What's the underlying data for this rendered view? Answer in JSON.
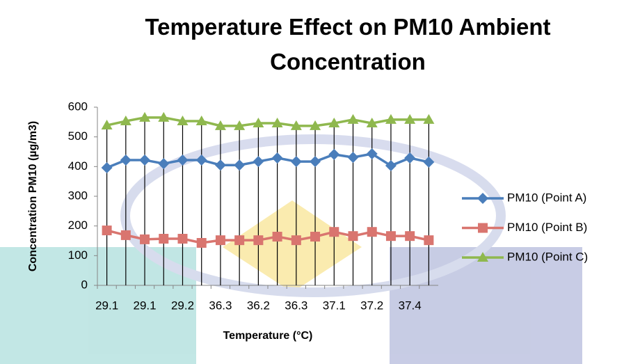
{
  "chart_data": {
    "type": "line",
    "title": "Temperature Effect on PM10 Ambient Concentration",
    "x_label": "Temperature (°C)",
    "y_label": "Concentration PM10 (µg/m3)",
    "categories": [
      "29.1",
      null,
      "29.1",
      null,
      "29.2",
      null,
      "36.3",
      null,
      "36.2",
      null,
      "36.3",
      null,
      "37.1",
      null,
      "37.2",
      null,
      "37.4",
      null
    ],
    "series": [
      {
        "name": "PM10 (Point A)",
        "color": "#4a7ebb",
        "marker": "diamond",
        "values": [
          396,
          422,
          422,
          410,
          422,
          422,
          405,
          405,
          417,
          429,
          417,
          417,
          441,
          431,
          443,
          403,
          429,
          415
        ]
      },
      {
        "name": "PM10 (Point B)",
        "color": "#d9756f",
        "marker": "square",
        "values": [
          185,
          169,
          155,
          157,
          157,
          143,
          152,
          152,
          152,
          164,
          152,
          164,
          180,
          166,
          180,
          166,
          166,
          152
        ]
      },
      {
        "name": "PM10 (Point C)",
        "color": "#8fb84e",
        "marker": "triangle",
        "values": [
          539,
          553,
          565,
          565,
          553,
          553,
          537,
          537,
          546,
          546,
          537,
          537,
          546,
          558,
          546,
          558,
          558,
          558
        ]
      }
    ],
    "ylim": [
      0,
      600
    ],
    "yticks": [
      0,
      100,
      200,
      300,
      400,
      500,
      600
    ],
    "drop_lines": true,
    "legend": "right"
  }
}
